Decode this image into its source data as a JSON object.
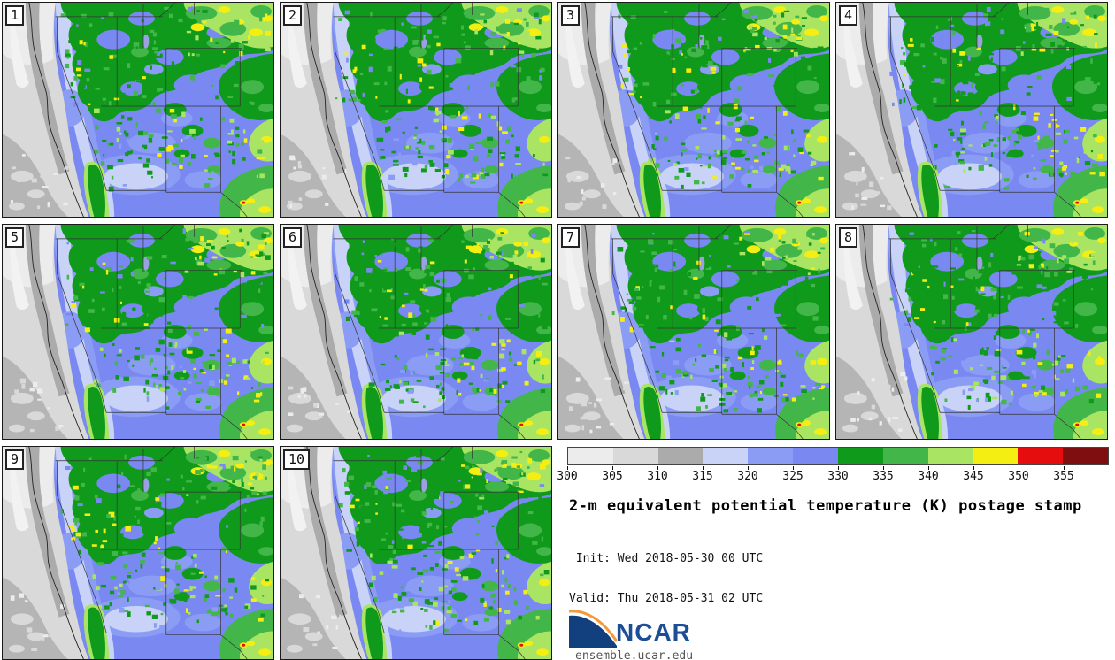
{
  "panels": [
    {
      "label": "1"
    },
    {
      "label": "2"
    },
    {
      "label": "3"
    },
    {
      "label": "4"
    },
    {
      "label": "5"
    },
    {
      "label": "6"
    },
    {
      "label": "7"
    },
    {
      "label": "8"
    },
    {
      "label": "9"
    },
    {
      "label": "10"
    }
  ],
  "colorbar": {
    "tick_labels": [
      "300",
      "305",
      "310",
      "315",
      "320",
      "325",
      "330",
      "335",
      "340",
      "345",
      "350",
      "355"
    ],
    "segment_colors": [
      "#ececec",
      "#d9d9d9",
      "#ababab",
      "#c9d3f7",
      "#8b9cf5",
      "#7a89f2",
      "#109a1b",
      "#42b648",
      "#a9e563",
      "#f5ee13",
      "#e60d0e",
      "#7f0e10"
    ]
  },
  "legend": {
    "title": "2-m equivalent potential temperature (K) postage stamp",
    "init_line": " Init: Wed 2018-05-30 00 UTC",
    "valid_line": "Valid: Thu 2018-05-31 02 UTC"
  },
  "logo": {
    "name": "NCAR",
    "url_text": "ensemble.ucar.edu",
    "blue": "#1b4e94",
    "swoosh_blue": "#123f7d",
    "swoosh_orange": "#f29a3c"
  },
  "map_palette": {
    "gray0": "#f2f2f2",
    "gray1": "#ececec",
    "gray2": "#d9d9d9",
    "gray3": "#ababab",
    "gray3b": "#b5b5b5",
    "blue": "#7a89f2",
    "blue2": "#8b9cf5",
    "blue3": "#c9d3f7",
    "dkgreen": "#109a1b",
    "green": "#42b648",
    "ltgreen": "#a9e563",
    "yellow": "#f5ee13",
    "red": "#e60d0e",
    "lake": "#9aa0e2",
    "border_line": "#333333",
    "coast_line": "#222222"
  }
}
